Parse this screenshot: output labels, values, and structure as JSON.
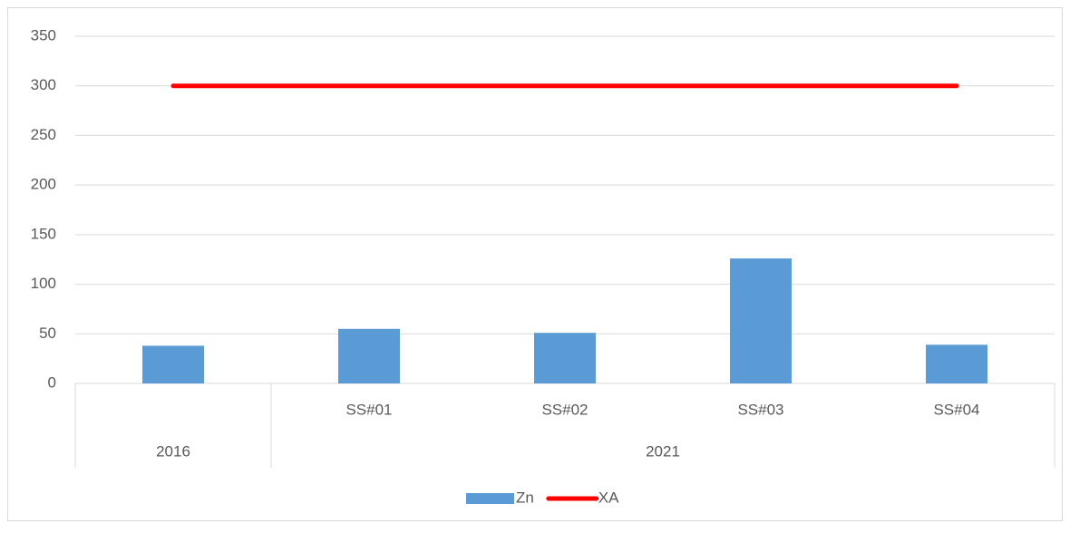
{
  "chart_data": {
    "type": "bar",
    "categories": [
      null,
      "SS#01",
      "SS#02",
      "SS#03",
      "SS#04"
    ],
    "groups": [
      {
        "name": "2016",
        "size": 1
      },
      {
        "name": "2021",
        "size": 4
      }
    ],
    "series": [
      {
        "name": "Zn",
        "type": "bar",
        "color": "#5b9bd5",
        "values": [
          38,
          55,
          51,
          126,
          39
        ]
      },
      {
        "name": "XA",
        "type": "line",
        "color": "#ff0000",
        "values": [
          300,
          300,
          300,
          300,
          300
        ]
      }
    ],
    "ylim": [
      0,
      350
    ],
    "yticks": [
      0,
      50,
      100,
      150,
      200,
      250,
      300,
      350
    ],
    "grid": true,
    "legend": "bottom"
  }
}
